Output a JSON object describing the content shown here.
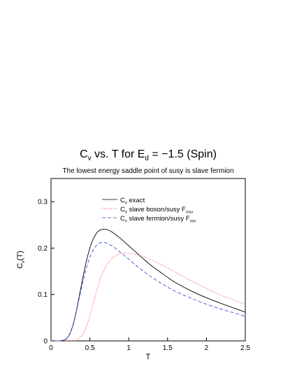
{
  "chart_data": {
    "type": "line",
    "title": {
      "main": "C",
      "sub": "v",
      "rest": " vs. T for E",
      "sub2": "d",
      "tail": " = −1.5 (Spin)"
    },
    "subtitle": "The lowest energy saddle point of susy is slave fermion",
    "xlabel": "T",
    "ylabel": {
      "main": "C",
      "sub": "v",
      "tail": "(T)"
    },
    "xlim": [
      0,
      2.5
    ],
    "ylim": [
      0,
      0.35
    ],
    "x_ticks": [
      0,
      0.5,
      1,
      1.5,
      2,
      2.5
    ],
    "x_tick_labels": [
      "0",
      "0.5",
      "1",
      "1.5",
      "2",
      "2.5"
    ],
    "y_ticks": [
      0,
      0.1,
      0.2,
      0.3
    ],
    "y_tick_labels": [
      "0",
      "0.1",
      "0.2",
      "0.3"
    ],
    "grid": false,
    "legend_position": "top-center",
    "series": [
      {
        "key": "exact",
        "legend": {
          "main": "C",
          "sub": "v",
          "tail": " exact"
        },
        "color": "#000000",
        "dash": "",
        "x": [
          0,
          0.1,
          0.15,
          0.2,
          0.25,
          0.3,
          0.35,
          0.4,
          0.45,
          0.5,
          0.55,
          0.6,
          0.65,
          0.7,
          0.75,
          0.8,
          0.9,
          1.0,
          1.1,
          1.2,
          1.3,
          1.4,
          1.5,
          1.6,
          1.8,
          2.0,
          2.2,
          2.4,
          2.5
        ],
        "y": [
          0,
          0,
          0.001,
          0.005,
          0.018,
          0.045,
          0.085,
          0.128,
          0.168,
          0.2,
          0.222,
          0.235,
          0.24,
          0.2405,
          0.238,
          0.233,
          0.22,
          0.205,
          0.19,
          0.175,
          0.161,
          0.149,
          0.137,
          0.126,
          0.108,
          0.093,
          0.08,
          0.068,
          0.062
        ]
      },
      {
        "key": "slave_boson",
        "legend": {
          "main": "C",
          "sub": "v",
          "tail": " slave boson/susy F",
          "tsub": "max"
        },
        "color": "#ff3b3b",
        "dash": "1.2,2",
        "x": [
          0,
          0.3,
          0.35,
          0.4,
          0.45,
          0.5,
          0.55,
          0.6,
          0.65,
          0.7,
          0.75,
          0.8,
          0.85,
          0.9,
          0.95,
          1.0,
          1.05,
          1.1,
          1.2,
          1.3,
          1.4,
          1.5,
          1.6,
          1.8,
          2.0,
          2.2,
          2.4,
          2.5
        ],
        "y": [
          0,
          0,
          0.004,
          0.012,
          0.028,
          0.055,
          0.085,
          0.115,
          0.14,
          0.158,
          0.171,
          0.18,
          0.185,
          0.188,
          0.189,
          0.189,
          0.188,
          0.186,
          0.181,
          0.174,
          0.166,
          0.157,
          0.148,
          0.13,
          0.113,
          0.098,
          0.085,
          0.079
        ]
      },
      {
        "key": "slave_fermion",
        "legend": {
          "main": "C",
          "sub": "v",
          "tail": " slave fermion/susy F",
          "tsub": "min"
        },
        "color": "#3a4fd6",
        "dash": "5,3",
        "x": [
          0,
          0.1,
          0.15,
          0.2,
          0.25,
          0.3,
          0.35,
          0.4,
          0.45,
          0.5,
          0.55,
          0.6,
          0.65,
          0.7,
          0.75,
          0.8,
          0.9,
          1.0,
          1.1,
          1.2,
          1.3,
          1.4,
          1.5,
          1.6,
          1.8,
          2.0,
          2.2,
          2.4,
          2.5
        ],
        "y": [
          0,
          0,
          0.001,
          0.005,
          0.018,
          0.045,
          0.082,
          0.12,
          0.154,
          0.18,
          0.198,
          0.208,
          0.212,
          0.2115,
          0.208,
          0.203,
          0.19,
          0.176,
          0.162,
          0.149,
          0.137,
          0.126,
          0.116,
          0.107,
          0.092,
          0.079,
          0.068,
          0.058,
          0.053
        ]
      }
    ]
  }
}
